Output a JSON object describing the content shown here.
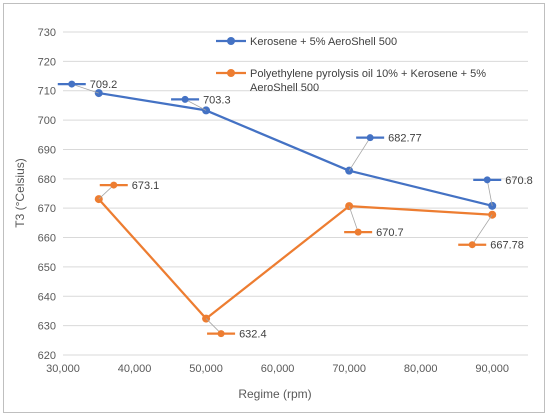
{
  "chart_data": {
    "type": "line",
    "xlabel": "Regime (rpm)",
    "ylabel": "T3 (°Celsius)",
    "xlim": [
      30000,
      95000
    ],
    "ylim": [
      620,
      730
    ],
    "x_ticks": [
      "30,000",
      "40,000",
      "50,000",
      "60,000",
      "70,000",
      "80,000",
      "90,000"
    ],
    "y_ticks": [
      "620",
      "630",
      "640",
      "650",
      "660",
      "670",
      "680",
      "690",
      "700",
      "710",
      "720",
      "730"
    ],
    "grid": true,
    "legend_position": "top-right",
    "series": [
      {
        "name": "Kerosene + 5% AeroShell 500",
        "color": "#4472C4",
        "x": [
          35000,
          50000,
          70000,
          90000
        ],
        "values": [
          709.2,
          703.3,
          682.77,
          670.8
        ],
        "labels": [
          "709.2",
          "703.3",
          "682.77",
          "670.8"
        ]
      },
      {
        "name": "Polyethylene pyrolysis oil 10% + Kerosene + 5% AeroShell 500",
        "name_lines": [
          "Polyethylene pyrolysis oil 10% + Kerosene + 5%",
          "AeroShell 500"
        ],
        "color": "#ED7D31",
        "x": [
          35000,
          50000,
          70000,
          90000
        ],
        "values": [
          673.1,
          632.4,
          670.7,
          667.78
        ],
        "labels": [
          "673.1",
          "632.4",
          "670.7",
          "667.78"
        ]
      }
    ]
  }
}
